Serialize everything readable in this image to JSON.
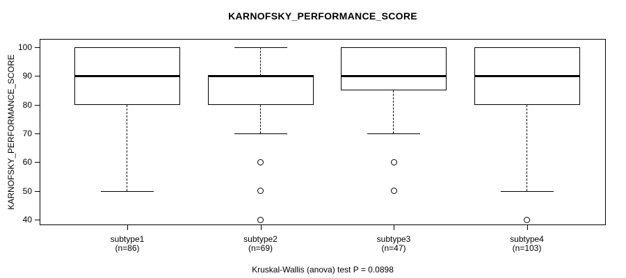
{
  "chart_data": {
    "type": "boxplot",
    "title": "KARNOFSKY_PERFORMANCE_SCORE",
    "ylabel": "KARNOFSKY_PERFORMANCE_SCORE",
    "xlabel": "",
    "ylim": [
      38,
      102
    ],
    "yticks": [
      40,
      50,
      60,
      70,
      80,
      90,
      100
    ],
    "grid": false,
    "legend": "none",
    "annotation": "Kruskal-Wallis (anova) test P = 0.0898",
    "groups": [
      {
        "label": "subtype1",
        "sublabel": "(n=86)",
        "n": 86,
        "whisker_low": 50,
        "q1": 80,
        "median": 90,
        "q3": 100,
        "whisker_high": 100,
        "outliers": []
      },
      {
        "label": "subtype2",
        "sublabel": "(n=69)",
        "n": 69,
        "whisker_low": 70,
        "q1": 80,
        "median": 90,
        "q3": 90,
        "whisker_high": 100,
        "outliers": [
          60,
          50,
          40
        ]
      },
      {
        "label": "subtype3",
        "sublabel": "(n=47)",
        "n": 47,
        "whisker_low": 70,
        "q1": 85,
        "median": 90,
        "q3": 100,
        "whisker_high": 100,
        "outliers": [
          60,
          50
        ]
      },
      {
        "label": "subtype4",
        "sublabel": "(n=103)",
        "n": 103,
        "whisker_low": 50,
        "q1": 80,
        "median": 90,
        "q3": 100,
        "whisker_high": 100,
        "outliers": [
          40
        ]
      }
    ],
    "colors": {
      "line": "#000000",
      "box_fill": "#ffffff",
      "background": "#ffffff"
    }
  }
}
